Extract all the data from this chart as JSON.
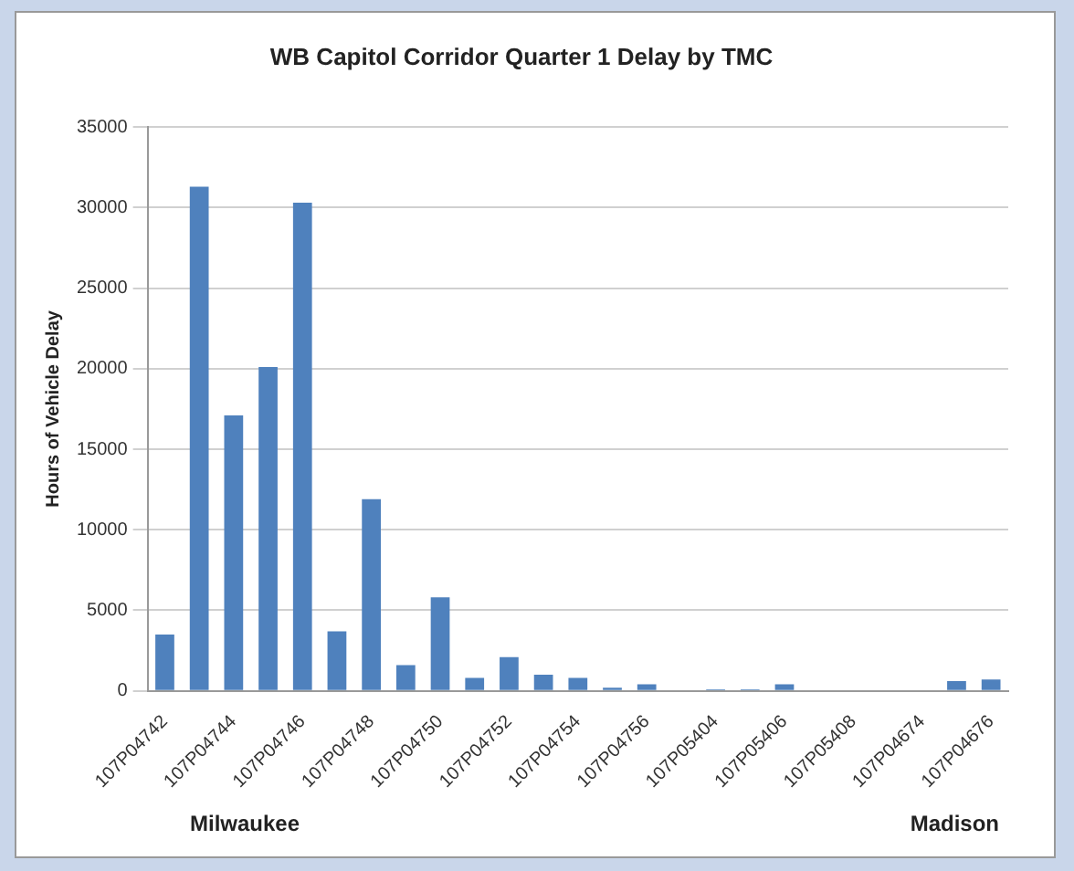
{
  "chart_data": {
    "type": "bar",
    "title": "WB Capitol Corridor Quarter 1 Delay by TMC",
    "ylabel": "Hours of Vehicle Delay",
    "categories": [
      "107P04742",
      null,
      "107P04744",
      null,
      "107P04746",
      null,
      "107P04748",
      null,
      "107P04750",
      null,
      "107P04752",
      null,
      "107P04754",
      null,
      "107P04756",
      null,
      "107P05404",
      null,
      "107P05406",
      null,
      "107P05408",
      null,
      "107P04674",
      null,
      "107P04676"
    ],
    "values": [
      3500,
      31300,
      17100,
      20100,
      30300,
      3700,
      11900,
      1600,
      5800,
      800,
      2100,
      1000,
      800,
      200,
      400,
      50,
      100,
      100,
      400,
      50,
      50,
      0,
      50,
      600,
      700
    ],
    "color": "#4f81bd",
    "ylim": [
      0,
      35000
    ],
    "yticks": [
      0,
      5000,
      10000,
      15000,
      20000,
      25000,
      30000,
      35000
    ],
    "grid": "y",
    "annotations": [
      "Milwaukee",
      "Madison"
    ]
  }
}
